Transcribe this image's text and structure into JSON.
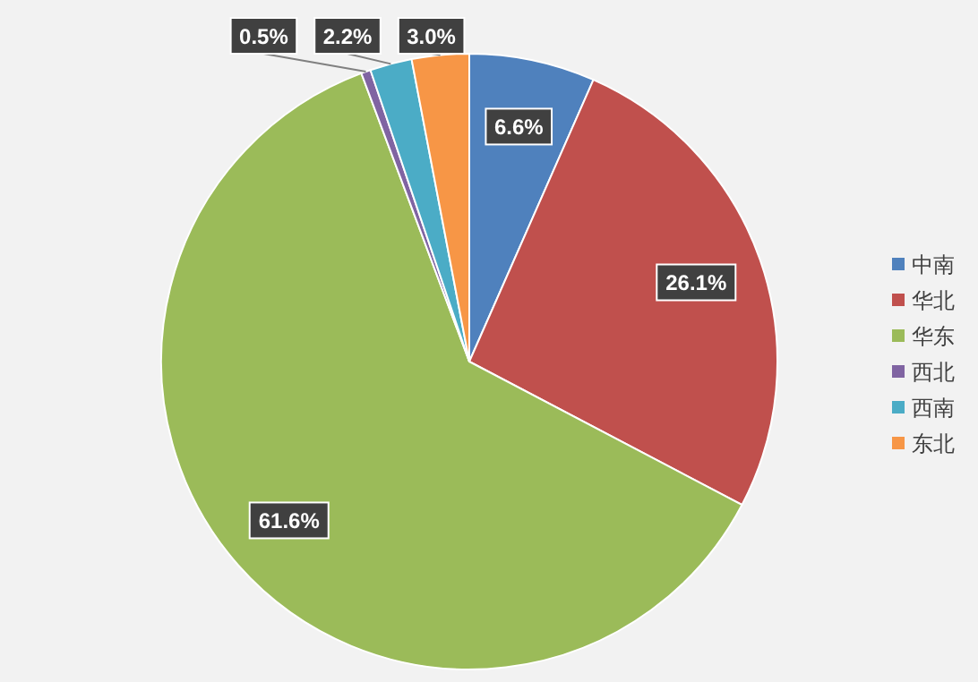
{
  "chart_data": {
    "type": "pie",
    "categories": [
      "中南",
      "华北",
      "华东",
      "西北",
      "西南",
      "东北"
    ],
    "values": [
      6.6,
      26.1,
      61.6,
      0.5,
      2.2,
      3.0
    ],
    "colors": [
      "#4f81bd",
      "#c0504d",
      "#9bbb59",
      "#8064a2",
      "#4bacc6",
      "#f79646"
    ],
    "value_labels": [
      "6.6%",
      "26.1%",
      "61.6%",
      "0.5%",
      "2.2%",
      "3.0%"
    ],
    "legend": "right"
  }
}
